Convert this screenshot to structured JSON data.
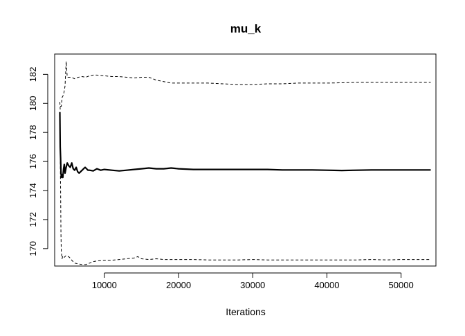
{
  "chart_data": {
    "type": "line",
    "title": "mu_k",
    "xlabel": "Iterations",
    "ylabel": "",
    "xlim": [
      3300,
      54700
    ],
    "ylim": [
      168.8,
      183.4
    ],
    "x_ticks": [
      10000,
      20000,
      30000,
      40000,
      50000
    ],
    "y_ticks": [
      170,
      172,
      174,
      176,
      178,
      180,
      182
    ],
    "grid": false,
    "legend": "none",
    "colors": {
      "line": "#000000",
      "axis": "#000000",
      "background": "#ffffff"
    },
    "series": [
      {
        "style": "solid",
        "x": [
          4000,
          4050,
          4100,
          4150,
          4200,
          4300,
          4400,
          4500,
          4600,
          4700,
          4850,
          5000,
          5200,
          5400,
          5600,
          5800,
          6000,
          6200,
          6400,
          6600,
          6800,
          7000,
          7200,
          7400,
          7600,
          7800,
          8000,
          8500,
          9000,
          9500,
          10000,
          11000,
          12000,
          13000,
          14000,
          15000,
          16000,
          17000,
          18000,
          19000,
          20000,
          22000,
          24000,
          26000,
          28000,
          30000,
          32000,
          34000,
          36000,
          38000,
          40000,
          42000,
          44000,
          46000,
          48000,
          50000,
          52000,
          54000
        ],
        "y": [
          179.4,
          177.0,
          176.2,
          175.3,
          174.9,
          175.1,
          174.9,
          175.5,
          175.8,
          175.2,
          175.6,
          175.9,
          175.7,
          175.6,
          175.9,
          175.5,
          175.4,
          175.6,
          175.3,
          175.2,
          175.3,
          175.4,
          175.5,
          175.6,
          175.5,
          175.4,
          175.4,
          175.35,
          175.5,
          175.4,
          175.45,
          175.4,
          175.35,
          175.4,
          175.45,
          175.5,
          175.55,
          175.5,
          175.5,
          175.55,
          175.5,
          175.45,
          175.45,
          175.45,
          175.45,
          175.45,
          175.45,
          175.42,
          175.42,
          175.42,
          175.4,
          175.38,
          175.4,
          175.42,
          175.42,
          175.42,
          175.42,
          175.42
        ]
      },
      {
        "style": "dashed",
        "x": [
          4000,
          4050,
          4100,
          4200,
          4300,
          4500,
          4700,
          4850,
          5000,
          5200,
          5500,
          6000,
          6500,
          7000,
          7500,
          8000,
          8500,
          9000,
          10000,
          11000,
          12000,
          13000,
          14000,
          15000,
          16000,
          17000,
          18000,
          19000,
          20000,
          22000,
          24000,
          26000,
          28000,
          30000,
          32000,
          34000,
          36000,
          38000,
          40000,
          42000,
          44000,
          46000,
          48000,
          50000,
          52000,
          54000
        ],
        "y": [
          180.1,
          179.6,
          179.8,
          179.8,
          180.4,
          180.6,
          181.2,
          182.9,
          181.8,
          181.8,
          181.8,
          181.7,
          181.8,
          181.85,
          181.8,
          181.9,
          181.95,
          181.95,
          181.9,
          181.85,
          181.85,
          181.8,
          181.75,
          181.8,
          181.8,
          181.6,
          181.5,
          181.4,
          181.4,
          181.4,
          181.4,
          181.35,
          181.3,
          181.3,
          181.35,
          181.35,
          181.4,
          181.4,
          181.4,
          181.42,
          181.45,
          181.45,
          181.45,
          181.45,
          181.45,
          181.45
        ]
      },
      {
        "style": "dashed",
        "x": [
          4000,
          4050,
          4100,
          4150,
          4200,
          4300,
          4400,
          4600,
          4800,
          5000,
          5300,
          5600,
          6000,
          6500,
          7000,
          7500,
          8000,
          8500,
          9000,
          10000,
          11000,
          12000,
          13000,
          14000,
          14500,
          15000,
          16000,
          17000,
          18000,
          19000,
          20000,
          22000,
          24000,
          26000,
          28000,
          30000,
          32000,
          34000,
          36000,
          38000,
          40000,
          42000,
          44000,
          46000,
          48000,
          50000,
          52000,
          54000
        ],
        "y": [
          179.0,
          176.5,
          174.0,
          171.0,
          169.8,
          169.3,
          169.5,
          169.4,
          169.5,
          169.5,
          169.4,
          169.2,
          169.0,
          168.95,
          168.9,
          168.9,
          169.0,
          169.1,
          169.15,
          169.2,
          169.2,
          169.25,
          169.3,
          169.35,
          169.45,
          169.3,
          169.25,
          169.3,
          169.25,
          169.25,
          169.25,
          169.25,
          169.22,
          169.22,
          169.22,
          169.25,
          169.22,
          169.22,
          169.22,
          169.22,
          169.22,
          169.22,
          169.22,
          169.25,
          169.22,
          169.25,
          169.25,
          169.25
        ]
      }
    ]
  }
}
